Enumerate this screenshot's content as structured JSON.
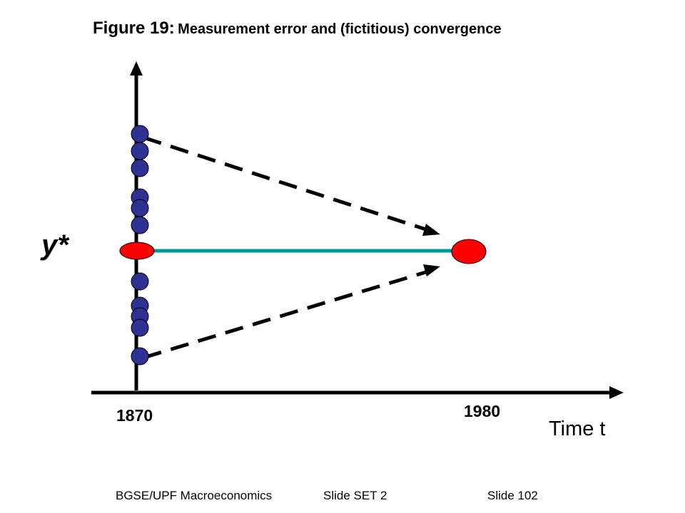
{
  "title": {
    "lead": "Figure 19:",
    "rest": "Measurement error and (fictitious) convergence"
  },
  "labels": {
    "y_axis": "y*",
    "year_start": "1870",
    "year_end": "1980",
    "x_axis": "Time t"
  },
  "footer": {
    "left": "BGSE/UPF Macroeconomics",
    "middle": "Slide SET 2",
    "right": "Slide 102"
  },
  "colors": {
    "observation_dot": "#2E3192",
    "steady_state_dot": "#FF0000",
    "steady_state_line": "#009999",
    "axes": "#000000"
  },
  "diagram": {
    "observation_count_above": 6,
    "observation_count_below": 5
  }
}
